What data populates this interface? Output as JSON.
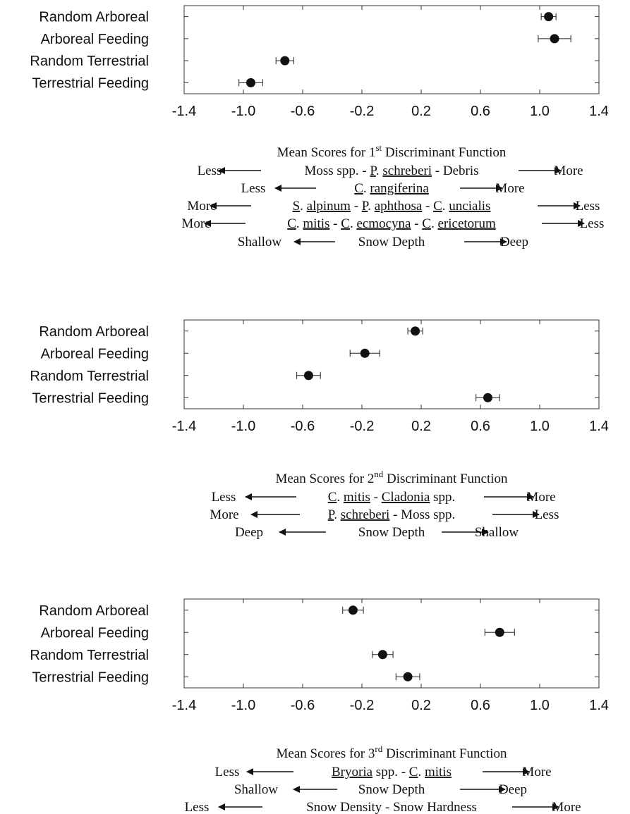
{
  "chart_data": [
    {
      "type": "scatter",
      "categories": [
        "Random Arboreal",
        "Arboreal Feeding",
        "Random Terrestrial",
        "Terrestrial Feeding"
      ],
      "x_ticks": [
        "-1.4",
        "-1.0",
        "-0.6",
        "-0.2",
        "0.2",
        "0.6",
        "1.0",
        "1.4"
      ],
      "xlim": [
        -1.4,
        1.4
      ],
      "points": [
        {
          "category": "Random Arboreal",
          "mean": 1.06,
          "err": 0.05
        },
        {
          "category": "Arboreal Feeding",
          "mean": 1.1,
          "err": 0.11
        },
        {
          "category": "Random Terrestrial",
          "mean": -0.72,
          "err": 0.06
        },
        {
          "category": "Terrestrial Feeding",
          "mean": -0.95,
          "err": 0.08
        }
      ],
      "caption_title": "Mean Scores for 1st Discriminant Function",
      "rows": [
        {
          "left": "Less",
          "middle": "Moss spp. - P. schreberi - Debris",
          "right": "More"
        },
        {
          "left": "Less",
          "middle": "C. rangiferina",
          "right": "More"
        },
        {
          "left": "More",
          "middle": "S. alpinum - P. aphthosa - C. uncialis",
          "right": "Less"
        },
        {
          "left": "More",
          "middle": "C. mitis - C. ecmocyna - C. ericetorum",
          "right": "Less"
        },
        {
          "left": "Shallow",
          "middle": "Snow Depth",
          "right": "Deep"
        }
      ]
    },
    {
      "type": "scatter",
      "categories": [
        "Random Arboreal",
        "Arboreal Feeding",
        "Random Terrestrial",
        "Terrestrial Feeding"
      ],
      "x_ticks": [
        "-1.4",
        "-1.0",
        "-0.6",
        "-0.2",
        "0.2",
        "0.6",
        "1.0",
        "1.4"
      ],
      "xlim": [
        -1.4,
        1.4
      ],
      "points": [
        {
          "category": "Random Arboreal",
          "mean": 0.16,
          "err": 0.05
        },
        {
          "category": "Arboreal Feeding",
          "mean": -0.18,
          "err": 0.1
        },
        {
          "category": "Random Terrestrial",
          "mean": -0.56,
          "err": 0.08
        },
        {
          "category": "Terrestrial Feeding",
          "mean": 0.65,
          "err": 0.08
        }
      ],
      "caption_title": "Mean Scores for 2nd Discriminant Function",
      "rows": [
        {
          "left": "Less",
          "middle": "C. mitis - Cladonia spp.",
          "right": "More"
        },
        {
          "left": "More",
          "middle": "P. schreberi - Moss spp.",
          "right": "Less"
        },
        {
          "left": "Deep",
          "middle": "Snow Depth",
          "right": "Shallow"
        }
      ]
    },
    {
      "type": "scatter",
      "categories": [
        "Random Arboreal",
        "Arboreal Feeding",
        "Random Terrestrial",
        "Terrestrial Feeding"
      ],
      "x_ticks": [
        "-1.4",
        "-1.0",
        "-0.6",
        "-0.2",
        "0.2",
        "0.6",
        "1.0",
        "1.4"
      ],
      "xlim": [
        -1.4,
        1.4
      ],
      "points": [
        {
          "category": "Random Arboreal",
          "mean": -0.26,
          "err": 0.07
        },
        {
          "category": "Arboreal Feeding",
          "mean": 0.73,
          "err": 0.1
        },
        {
          "category": "Random Terrestrial",
          "mean": -0.06,
          "err": 0.07
        },
        {
          "category": "Terrestrial Feeding",
          "mean": 0.11,
          "err": 0.08
        }
      ],
      "caption_title": "Mean Scores for 3rd Discriminant Function",
      "rows": [
        {
          "left": "Less",
          "middle": "Bryoria spp. - C. mitis",
          "right": "More"
        },
        {
          "left": "Shallow",
          "middle": "Snow Depth",
          "right": "Deep"
        },
        {
          "left": "Less",
          "middle": "Snow Density - Snow Hardness",
          "right": "More"
        }
      ]
    }
  ]
}
